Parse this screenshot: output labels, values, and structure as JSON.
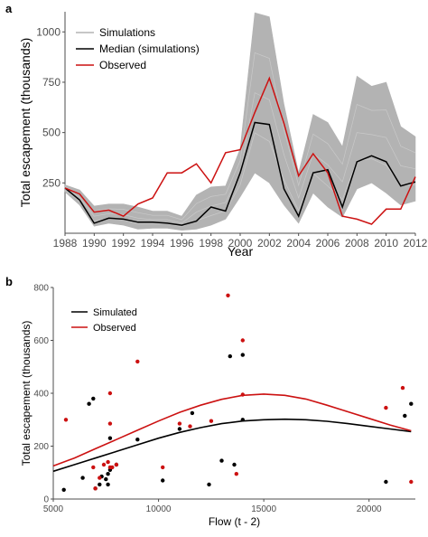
{
  "colors": {
    "simulations": "#b3b3b3",
    "median": "#000000",
    "observed": "#cc1111",
    "simulated_points": "#000000",
    "axis": "#4d4d4d"
  },
  "chart_data": [
    {
      "panel": "a",
      "type": "line",
      "xlabel": "Year",
      "ylabel": "Total escapement (thousands)",
      "xlim": [
        1988,
        2012
      ],
      "ylim": [
        0,
        1100
      ],
      "x_ticks": [
        "1988",
        "1990",
        "1992",
        "1994",
        "1996",
        "1998",
        "2000",
        "2002",
        "2004",
        "2006",
        "2008",
        "2010",
        "2012"
      ],
      "y_ticks": [
        "250",
        "500",
        "750",
        "1000"
      ],
      "grid": false,
      "legend_position": "top-left",
      "x": [
        1988,
        1989,
        1990,
        1991,
        1992,
        1993,
        1994,
        1995,
        1996,
        1997,
        1998,
        1999,
        2000,
        2001,
        2002,
        2003,
        2004,
        2005,
        2006,
        2007,
        2008,
        2009,
        2010,
        2011,
        2012
      ],
      "series": [
        {
          "name": "Simulations",
          "kind": "band",
          "lower": [
            205,
            140,
            35,
            50,
            40,
            20,
            25,
            25,
            15,
            20,
            40,
            70,
            180,
            300,
            250,
            140,
            50,
            200,
            130,
            80,
            220,
            250,
            200,
            140,
            160
          ],
          "upper": [
            240,
            215,
            135,
            145,
            145,
            130,
            110,
            110,
            85,
            190,
            230,
            235,
            420,
            1095,
            1075,
            640,
            300,
            590,
            550,
            430,
            780,
            730,
            750,
            530,
            480
          ]
        },
        {
          "name": "Median (simulations)",
          "values": [
            225,
            165,
            50,
            75,
            70,
            55,
            55,
            50,
            40,
            60,
            130,
            110,
            300,
            550,
            540,
            220,
            85,
            300,
            315,
            130,
            355,
            385,
            355,
            235,
            255
          ]
        },
        {
          "name": "Observed",
          "values": [
            225,
            195,
            105,
            115,
            85,
            145,
            175,
            300,
            300,
            345,
            250,
            400,
            415,
            600,
            770,
            545,
            285,
            395,
            300,
            85,
            70,
            45,
            120,
            120,
            280
          ]
        }
      ]
    },
    {
      "panel": "b",
      "type": "scatter",
      "xlabel": "Flow (t - 2)",
      "ylabel": "Total escapement (thousands)",
      "xlim": [
        5000,
        22200
      ],
      "ylim": [
        0,
        800
      ],
      "x_ticks": [
        "5000",
        "10000",
        "15000",
        "20000"
      ],
      "y_ticks": [
        "0",
        "200",
        "400",
        "600",
        "800"
      ],
      "grid": false,
      "legend_position": "top-left",
      "series": [
        {
          "name": "Simulated",
          "kind": "curve",
          "x": [
            5000,
            6000,
            7000,
            8000,
            9000,
            10000,
            11000,
            12000,
            13000,
            14000,
            15000,
            16000,
            17000,
            18000,
            19000,
            20000,
            21000,
            22000
          ],
          "y": [
            105,
            130,
            155,
            180,
            205,
            230,
            252,
            270,
            285,
            295,
            300,
            302,
            300,
            294,
            285,
            275,
            265,
            255
          ]
        },
        {
          "name": "Observed",
          "kind": "curve",
          "x": [
            5000,
            6000,
            7000,
            8000,
            9000,
            10000,
            11000,
            12000,
            13000,
            14000,
            15000,
            16000,
            17000,
            18000,
            19000,
            20000,
            21000,
            22000
          ],
          "y": [
            125,
            155,
            190,
            225,
            260,
            295,
            328,
            355,
            377,
            392,
            397,
            392,
            378,
            355,
            330,
            305,
            280,
            258
          ]
        },
        {
          "name": "Simulated points",
          "kind": "points",
          "points": [
            [
              5500,
              35
            ],
            [
              6400,
              80
            ],
            [
              6700,
              360
            ],
            [
              6900,
              380
            ],
            [
              7000,
              40
            ],
            [
              7200,
              55
            ],
            [
              7300,
              85
            ],
            [
              7500,
              75
            ],
            [
              7600,
              55
            ],
            [
              7600,
              95
            ],
            [
              7700,
              230
            ],
            [
              7700,
              110
            ],
            [
              8000,
              130
            ],
            [
              9000,
              225
            ],
            [
              10200,
              70
            ],
            [
              11000,
              265
            ],
            [
              11600,
              325
            ],
            [
              12400,
              55
            ],
            [
              13000,
              145
            ],
            [
              13400,
              540
            ],
            [
              13600,
              130
            ],
            [
              14000,
              300
            ],
            [
              14000,
              545
            ],
            [
              20800,
              65
            ],
            [
              21700,
              315
            ],
            [
              22000,
              360
            ]
          ]
        },
        {
          "name": "Observed points",
          "kind": "points",
          "points": [
            [
              5600,
              300
            ],
            [
              6900,
              120
            ],
            [
              7000,
              40
            ],
            [
              7200,
              80
            ],
            [
              7400,
              130
            ],
            [
              7600,
              140
            ],
            [
              7700,
              400
            ],
            [
              7700,
              285
            ],
            [
              7700,
              120
            ],
            [
              7800,
              120
            ],
            [
              8000,
              130
            ],
            [
              9000,
              520
            ],
            [
              10200,
              120
            ],
            [
              11000,
              285
            ],
            [
              11500,
              275
            ],
            [
              12500,
              295
            ],
            [
              13300,
              770
            ],
            [
              13700,
              95
            ],
            [
              14000,
              395
            ],
            [
              14000,
              600
            ],
            [
              20800,
              345
            ],
            [
              21600,
              420
            ],
            [
              22000,
              65
            ]
          ]
        }
      ]
    }
  ]
}
